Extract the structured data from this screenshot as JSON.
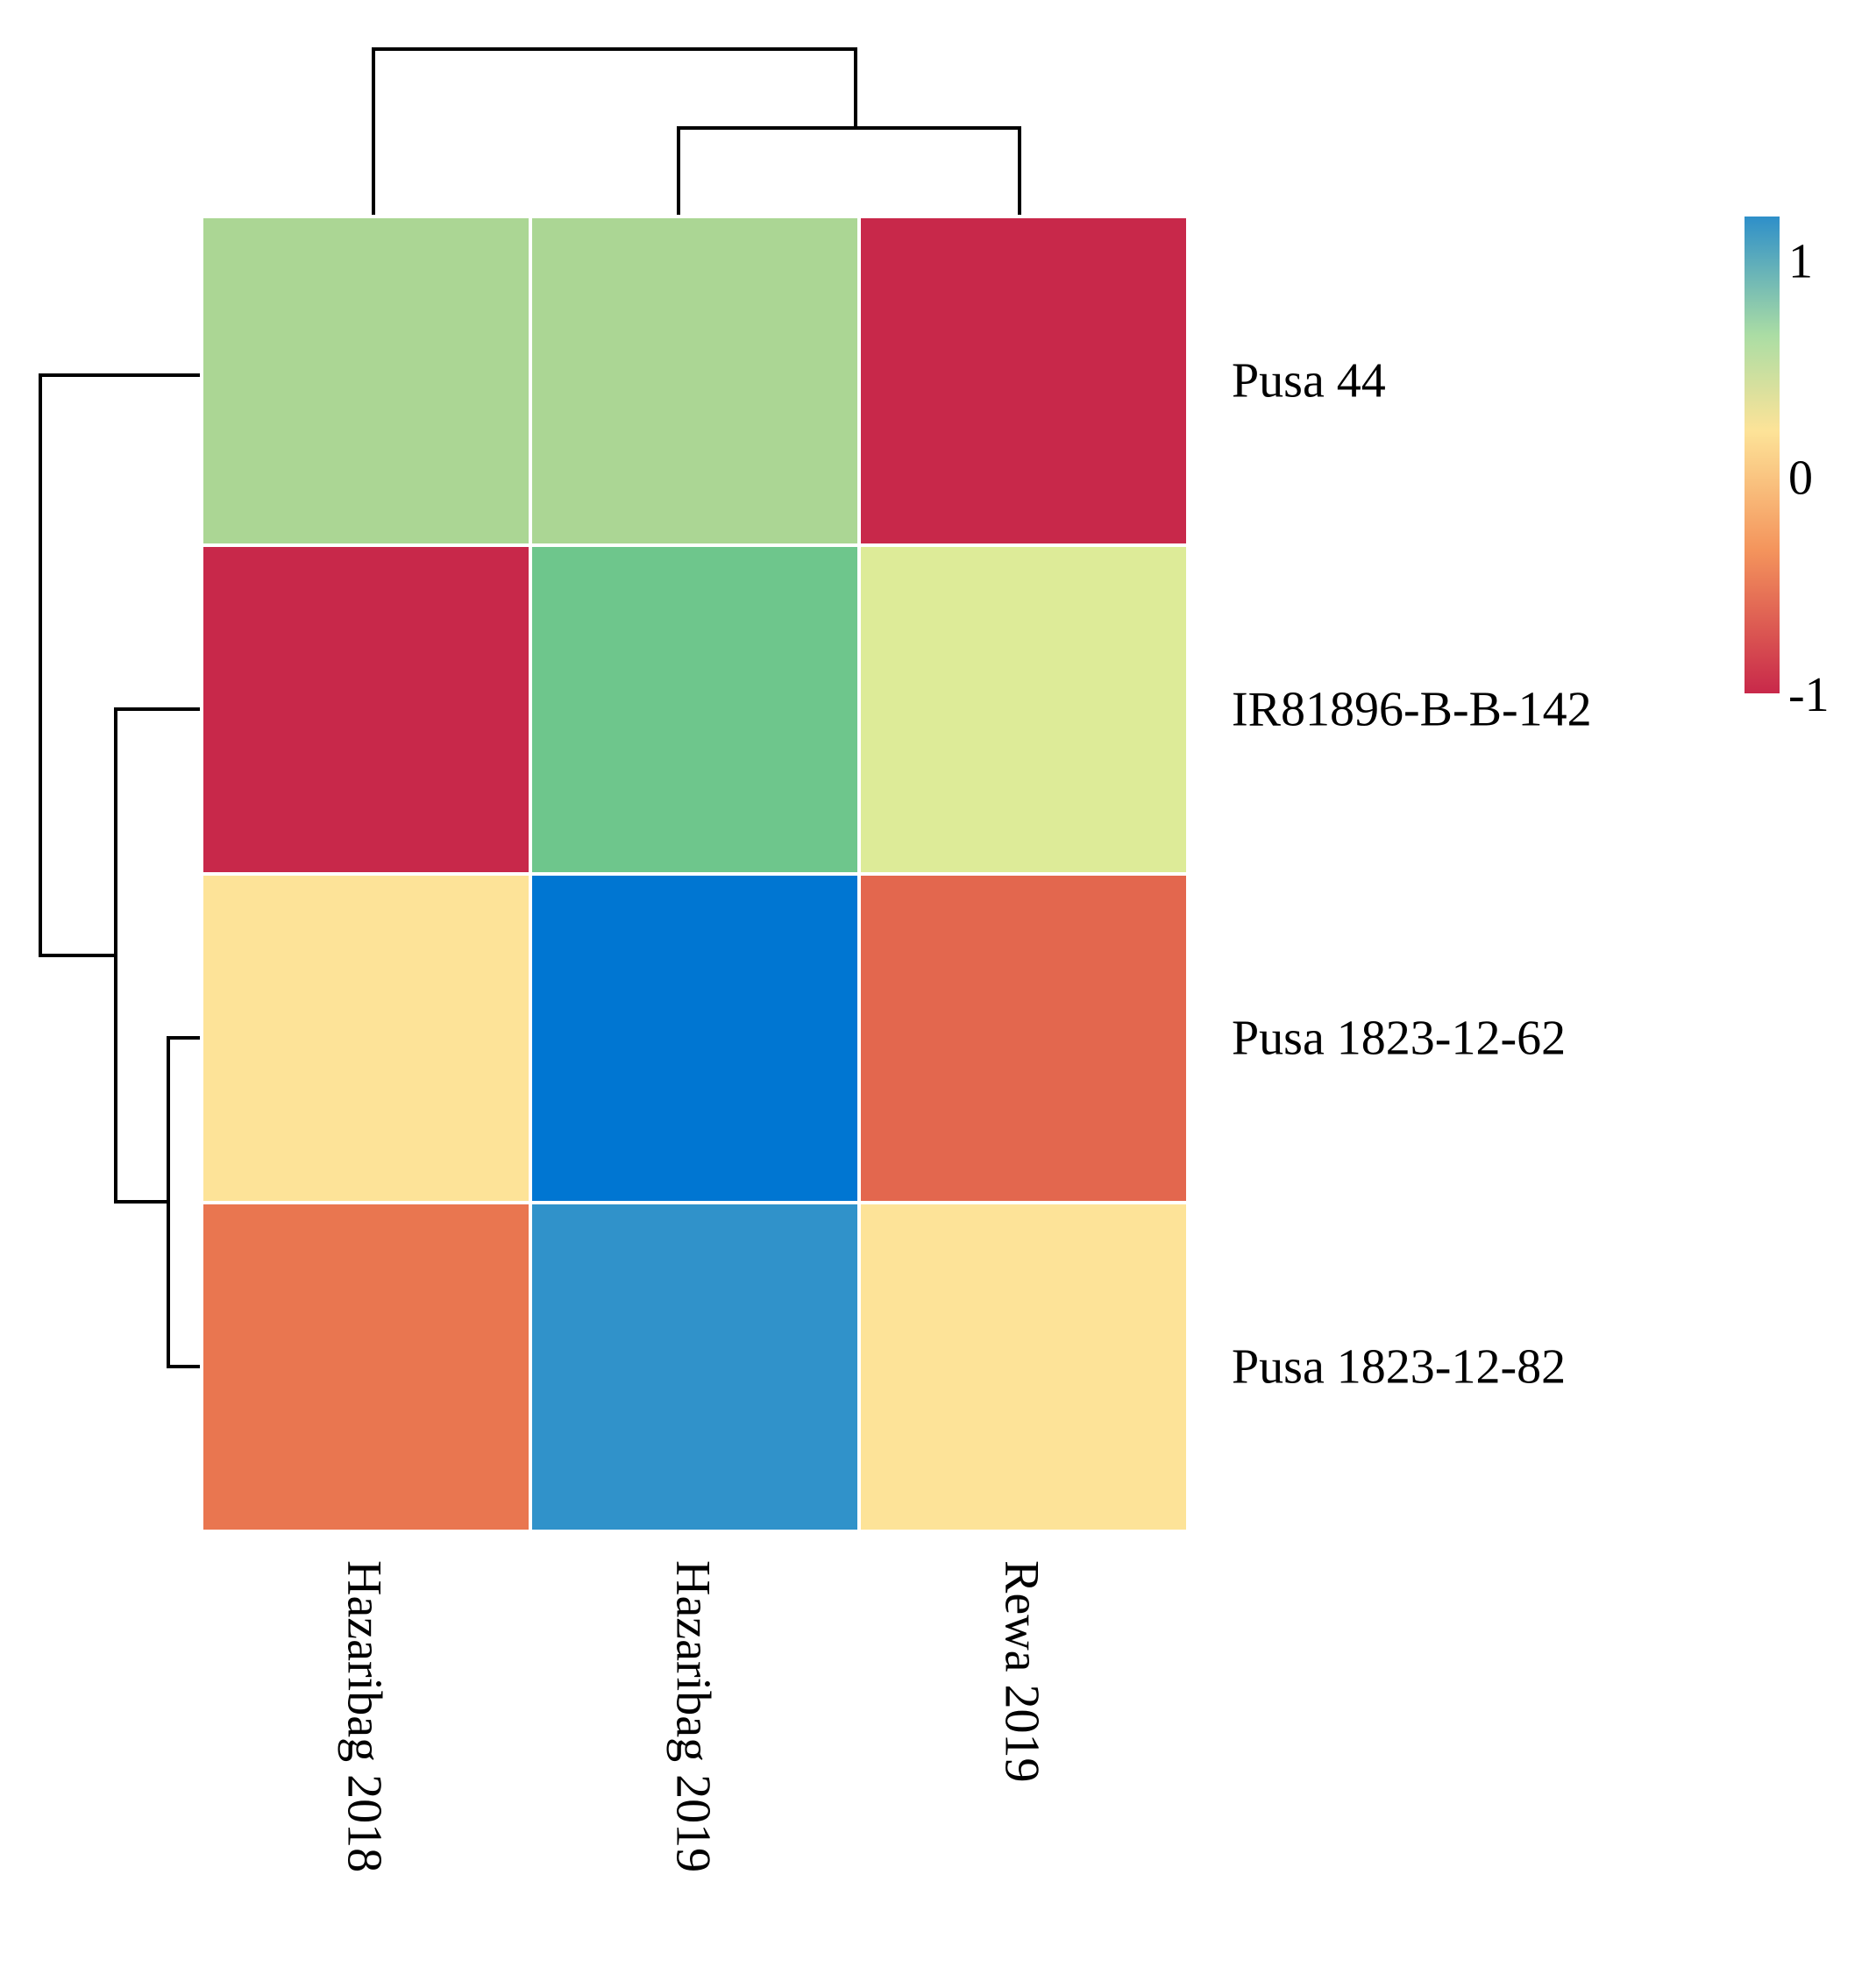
{
  "chart_data": {
    "type": "heatmap",
    "title": "",
    "columns": [
      "Hazaribag 2018",
      "Hazaribag 2019",
      "Rewa 2019"
    ],
    "rows": [
      "Pusa 44",
      "IR81896-B-B-142",
      "Pusa 1823-12-62",
      "Pusa 1823-12-82"
    ],
    "values": [
      [
        0.55,
        0.55,
        -1.0
      ],
      [
        -1.0,
        0.75,
        0.35
      ],
      [
        0.0,
        1.4,
        -0.65
      ],
      [
        -0.55,
        1.0,
        0.0
      ]
    ],
    "colorbar": {
      "range": [
        -1,
        1.2
      ],
      "ticks": [
        {
          "value": 1,
          "label": "1"
        },
        {
          "value": 0,
          "label": "0"
        },
        {
          "value": -1,
          "label": "-1"
        }
      ],
      "colors": {
        "high": "#2E8FC9",
        "mid": "#FDE398",
        "low": "#C8284A"
      }
    },
    "column_dendrogram": "(Hazaribag 2018, (Hazaribag 2019, Rewa 2019))",
    "row_dendrogram": "(Pusa 44, (IR81896-B-B-142, (Pusa 1823-12-62, Pusa 1823-12-82)))"
  }
}
